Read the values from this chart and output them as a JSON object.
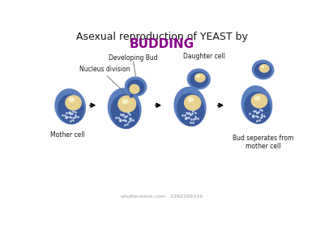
{
  "title_line1": "Asexual reproduction of YEAST by",
  "title_line2": "BUDDING",
  "title_color": "#1a1a1a",
  "budding_color": "#8B008B",
  "cell_outer_color": "#5B7FBE",
  "cell_dark_bg": "#3A5A9A",
  "dot_color": "#C8D8EE",
  "nucleus_color": "#E8D090",
  "nucleus_inner_color": "#F5ECC0",
  "label_color": "#1a1a1a",
  "arrow_color": "#111111",
  "bg_color": "#FFFFFF",
  "labels": {
    "mother": "Mother cell",
    "nucleus": "Nucleus division",
    "bud": "Developing Bud",
    "daughter": "Daughter cell",
    "separate": "Bud seperates from\nmother cell"
  },
  "watermark": "shutterstock.com · 2292299319"
}
